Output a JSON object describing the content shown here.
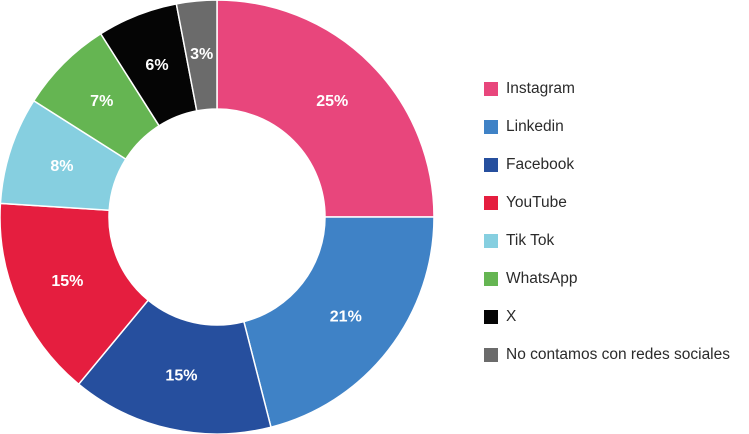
{
  "chart_data": {
    "type": "pie",
    "variant": "donut",
    "title": "",
    "legend_position": "right",
    "categories": [
      "Instagram",
      "Linkedin",
      "Facebook",
      "YouTube",
      "Tik Tok",
      "WhatsApp",
      "X",
      "No contamos con redes sociales"
    ],
    "values": [
      25,
      21,
      15,
      15,
      8,
      7,
      6,
      3
    ],
    "value_labels": [
      "25%",
      "21%",
      "15%",
      "15%",
      "8%",
      "7%",
      "6%",
      "3%"
    ],
    "colors": [
      "#e8467c",
      "#3f82c6",
      "#264f9e",
      "#e51e3f",
      "#86cfe0",
      "#65b552",
      "#050505",
      "#6b6b6b"
    ]
  }
}
